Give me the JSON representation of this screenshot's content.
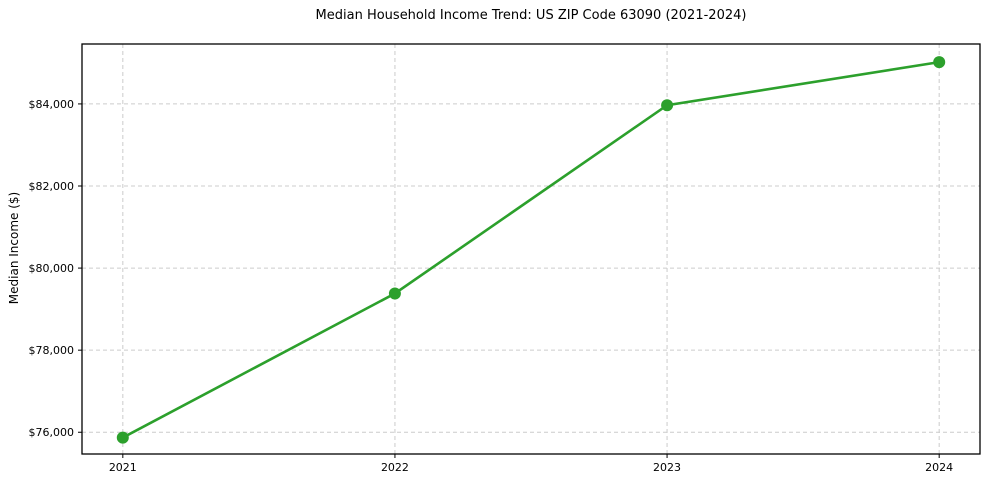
{
  "chart_data": {
    "type": "line",
    "title": "Median Household Income Trend: US ZIP Code 63090 (2021-2024)",
    "xlabel": "",
    "ylabel": "Median Income ($)",
    "categories": [
      2021,
      2022,
      2023,
      2024
    ],
    "series": [
      {
        "values": [
          75870,
          79380,
          83970,
          85020
        ],
        "color": "#2ca02c",
        "marker": "circle"
      }
    ],
    "x_tick_labels": [
      "2021",
      "2022",
      "2023",
      "2024"
    ],
    "y_ticks": [
      76000,
      78000,
      80000,
      82000,
      84000
    ],
    "y_tick_labels": [
      "$76,000",
      "$78,000",
      "$80,000",
      "$82,000",
      "$84,000"
    ],
    "xlim": [
      2020.85,
      2024.15
    ],
    "ylim": [
      75470,
      85460
    ],
    "grid": "both-axes-dashed",
    "legend_position": "none",
    "colors": {
      "line": "#2ca02c",
      "grid": "#cccccc",
      "spine": "#000000",
      "text": "#000000",
      "background": "#ffffff"
    }
  }
}
